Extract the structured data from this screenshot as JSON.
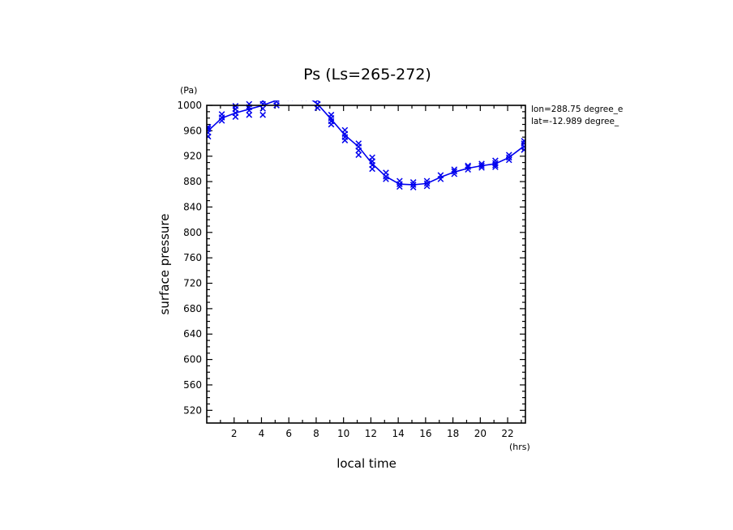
{
  "chart_data": {
    "type": "scatter",
    "title": "Ps (Ls=265-272)",
    "xlabel": "local time",
    "ylabel": "surface pressure",
    "x_unit": "(hrs)",
    "y_unit": "(Pa)",
    "xlim": [
      0,
      23.3
    ],
    "ylim": [
      500,
      1000
    ],
    "x_ticks": [
      2,
      4,
      6,
      8,
      10,
      12,
      14,
      16,
      18,
      20,
      22
    ],
    "y_ticks": [
      1000,
      960,
      920,
      880,
      840,
      800,
      760,
      720,
      680,
      640,
      600,
      560,
      520
    ],
    "grid": false,
    "annotations": [
      "lon=288.75 degree_e",
      "lat=-12.989 degree_"
    ],
    "series": [
      {
        "style": "line",
        "color": "#0000ee",
        "x": [
          0.1,
          1.1,
          2.1,
          3.1,
          4.1,
          5.1,
          6.1,
          7.1,
          8.1,
          9.1,
          10.1,
          11.1,
          12.1,
          13.1,
          14.1,
          15.1,
          16.1,
          17.1,
          18.1,
          19.1,
          20.1,
          21.1,
          22.1,
          23.2
        ],
        "y": [
          960,
          980,
          988,
          994,
          1000,
          1008,
          1018,
          1018,
          1002,
          978,
          953,
          935,
          908,
          888,
          876,
          875,
          877,
          887,
          895,
          901,
          905,
          908,
          918,
          936
        ]
      },
      {
        "style": "markers",
        "marker": "x",
        "color": "#0000ee",
        "x": [
          0.1,
          0.1,
          0.1,
          0.1,
          1.1,
          1.1,
          1.1,
          2.1,
          2.1,
          2.1,
          2.1,
          3.1,
          3.1,
          3.1,
          3.1,
          4.1,
          4.1,
          4.1,
          4.1,
          5.1,
          5.1,
          5.1,
          5.1,
          6.1,
          6.1,
          6.1,
          6.1,
          7.1,
          7.1,
          7.1,
          7.1,
          8.1,
          8.1,
          8.1,
          9.1,
          9.1,
          9.1,
          9.1,
          10.1,
          10.1,
          10.1,
          10.1,
          11.1,
          11.1,
          11.1,
          11.1,
          12.1,
          12.1,
          12.1,
          12.1,
          13.1,
          13.1,
          13.1,
          14.1,
          14.1,
          14.1,
          15.1,
          15.1,
          15.1,
          16.1,
          16.1,
          16.1,
          17.1,
          17.1,
          18.1,
          18.1,
          18.1,
          19.1,
          19.1,
          19.1,
          20.1,
          20.1,
          20.1,
          21.1,
          21.1,
          21.1,
          21.1,
          22.1,
          22.1,
          22.1,
          23.2,
          23.2,
          23.2,
          23.2
        ],
        "y": [
          951,
          957,
          963,
          966,
          976,
          981,
          986,
          982,
          988,
          994,
          999,
          985,
          992,
          997,
          1002,
          985,
          995,
          1002,
          1007,
          1000,
          1006,
          1010,
          1014,
          1012,
          1016,
          1020,
          1024,
          1012,
          1016,
          1020,
          1024,
          996,
          1002,
          1008,
          970,
          975,
          980,
          985,
          945,
          950,
          955,
          961,
          922,
          929,
          935,
          940,
          900,
          906,
          912,
          918,
          884,
          888,
          894,
          872,
          876,
          881,
          871,
          875,
          879,
          873,
          877,
          881,
          884,
          890,
          892,
          896,
          899,
          899,
          903,
          905,
          902,
          905,
          908,
          903,
          906,
          909,
          913,
          914,
          918,
          922,
          930,
          935,
          940,
          944
        ]
      }
    ]
  }
}
